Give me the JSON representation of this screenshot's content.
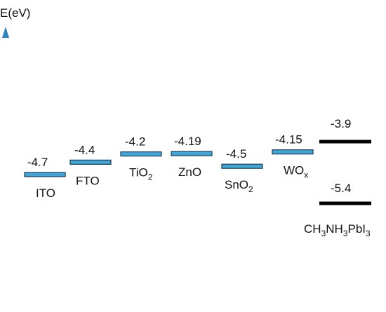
{
  "axis": {
    "label": "E(eV)"
  },
  "colors": {
    "axis": "#2e86c1",
    "level_fill": "#3fa7d8",
    "level_stroke": "#1f3b57",
    "perovskite": "#000000"
  },
  "materials": [
    {
      "id": "ito",
      "label": "ITO",
      "sub": "",
      "energy_text": "-4.7",
      "energy": -4.7
    },
    {
      "id": "fto",
      "label": "FTO",
      "sub": "",
      "energy_text": "-4.4",
      "energy": -4.4
    },
    {
      "id": "tio2",
      "label": "TiO",
      "sub": "2",
      "energy_text": "-4.2",
      "energy": -4.2
    },
    {
      "id": "zno",
      "label": "ZnO",
      "sub": "",
      "energy_text": "-4.19",
      "energy": -4.19
    },
    {
      "id": "sno2",
      "label": "SnO",
      "sub": "2",
      "energy_text": "-4.5",
      "energy": -4.5
    },
    {
      "id": "wox",
      "label": "WO",
      "sub": "x",
      "energy_text": "-4.15",
      "energy": -4.15
    }
  ],
  "perovskite": {
    "label_parts": [
      {
        "t": "CH"
      },
      {
        "s": "3"
      },
      {
        "t": "NH"
      },
      {
        "s": "3"
      },
      {
        "t": "PbI"
      },
      {
        "s": "3"
      }
    ],
    "cbm_text": "-3.9",
    "cbm": -3.9,
    "vbm_text": "-5.4",
    "vbm": -5.4
  }
}
